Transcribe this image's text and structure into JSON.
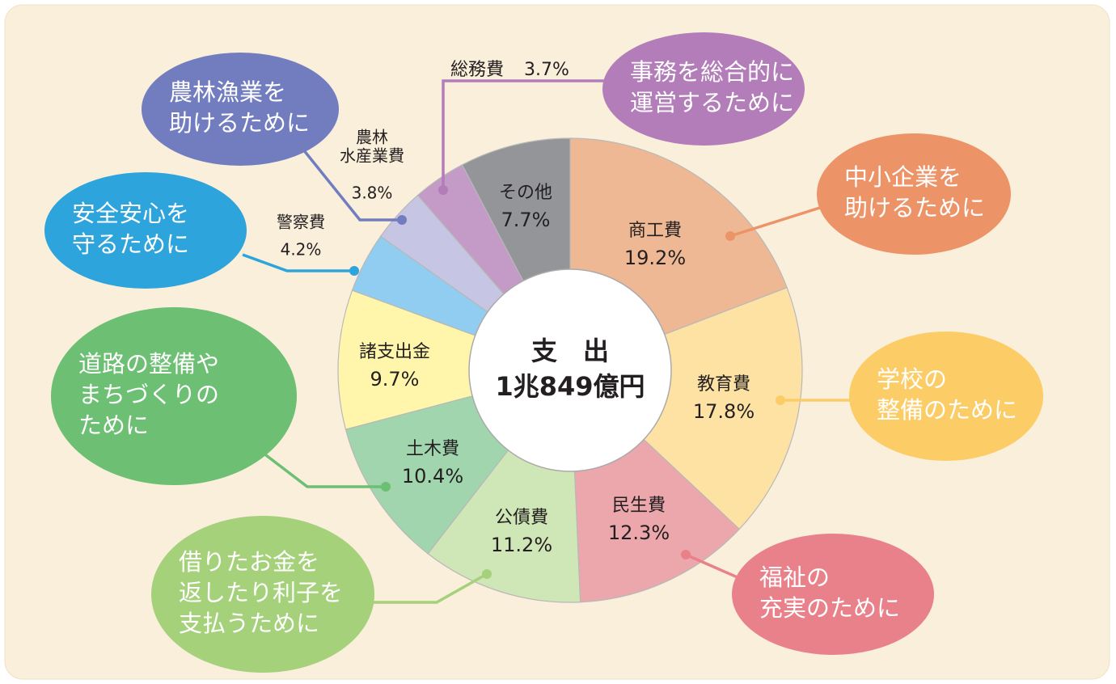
{
  "chart_data": {
    "type": "donut",
    "center_title": "支　出",
    "center_subtitle": "1兆849億円",
    "categories": [
      "商工費",
      "教育費",
      "民生費",
      "公債費",
      "土木費",
      "諸支出金",
      "警察費",
      "農林\n水産業費",
      "総務費",
      "その他"
    ],
    "values": [
      19.2,
      17.8,
      12.3,
      11.2,
      10.4,
      9.7,
      4.2,
      3.8,
      3.7,
      7.7
    ],
    "value_labels": [
      "19.2%",
      "17.8%",
      "12.3%",
      "11.2%",
      "10.4%",
      "9.7%",
      "4.2%",
      "3.8%",
      "3.7%",
      "7.7%"
    ],
    "colors": [
      "#efb894",
      "#fde2a4",
      "#eca7ac",
      "#cfe6b7",
      "#a1d5ae",
      "#fff6ab",
      "#91cdf0",
      "#c6c5e3",
      "#c49ac7",
      "#949598"
    ],
    "callouts": [
      {
        "text": [
          "中小企業を",
          "助けるために"
        ],
        "color": "#ec9368"
      },
      {
        "text": [
          "学校の",
          "整備のために"
        ],
        "color": "#fccc66"
      },
      {
        "text": [
          "福祉の",
          "充実のために"
        ],
        "color": "#e9818a"
      },
      {
        "text": [
          "借りたお金を",
          "返したり利子を",
          "支払うために"
        ],
        "color": "#a5d17b"
      },
      {
        "text": [
          "道路の整備や",
          "まちづくりの",
          "ために"
        ],
        "color": "#6cbf73"
      },
      null,
      {
        "text": [
          "安全安心を",
          "守るために"
        ],
        "color": "#2ea4dc"
      },
      {
        "text": [
          "農林漁業を",
          "助けるために"
        ],
        "color": "#727dc0"
      },
      {
        "text": [
          "事務を総合的に",
          "運営するために"
        ],
        "color": "#b27db9"
      },
      null
    ]
  }
}
